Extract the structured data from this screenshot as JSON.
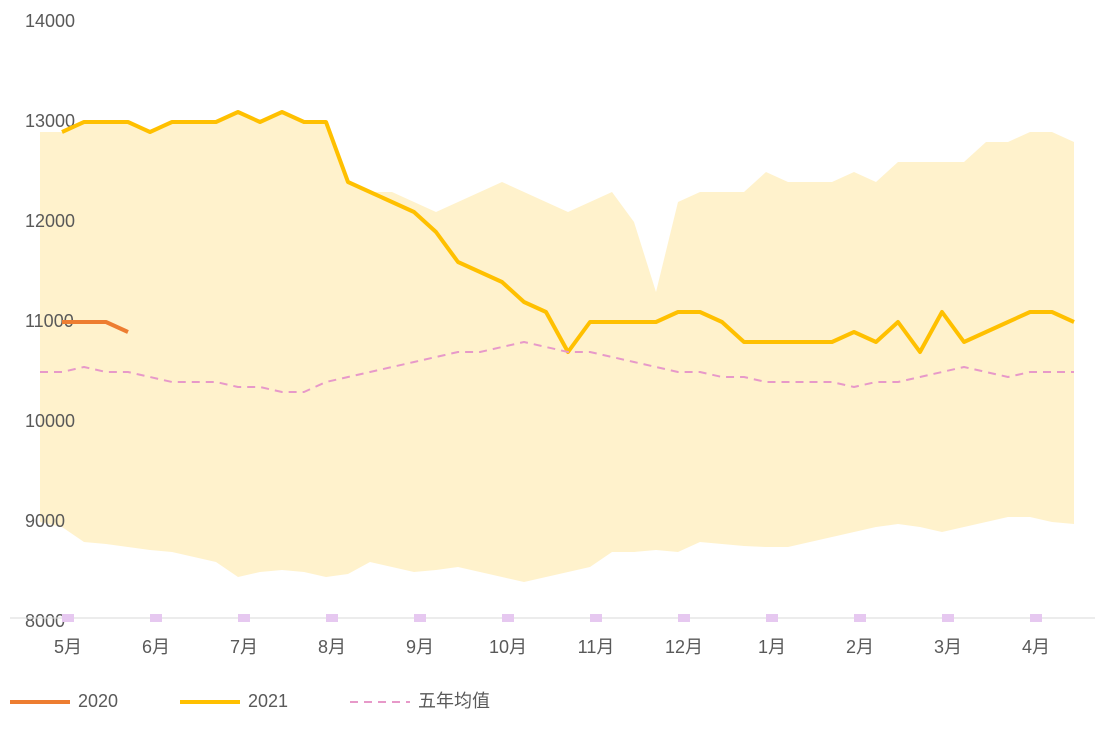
{
  "chart_data": {
    "type": "line",
    "categories": [
      "5月",
      null,
      null,
      null,
      "6月",
      null,
      null,
      null,
      "7月",
      null,
      null,
      null,
      "8月",
      null,
      null,
      null,
      "9月",
      null,
      null,
      null,
      "10月",
      null,
      null,
      null,
      "11月",
      null,
      null,
      null,
      "12月",
      null,
      null,
      null,
      "1月",
      null,
      null,
      null,
      "2月",
      null,
      null,
      null,
      "3月",
      null,
      null,
      null,
      "4月",
      null,
      null,
      null
    ],
    "ylim": [
      8000,
      14000
    ],
    "yticks": [
      8000,
      9000,
      10000,
      11000,
      12000,
      13000,
      14000
    ],
    "range": {
      "color": "#fff2cc",
      "high": [
        12900,
        12900,
        13000,
        13000,
        13000,
        12900,
        13000,
        13000,
        13000,
        13100,
        13000,
        13100,
        13000,
        13000,
        12400,
        12300,
        12300,
        12200,
        12100,
        12200,
        12300,
        12400,
        12300,
        12200,
        12100,
        12200,
        12300,
        12000,
        11300,
        12200,
        12300,
        12300,
        12300,
        12500,
        12400,
        12400,
        12400,
        12500,
        12400,
        12600,
        12600,
        12600,
        12600,
        12800,
        12800,
        12900,
        12900,
        12800
      ],
      "low": [
        9000,
        8950,
        8800,
        8780,
        8750,
        8720,
        8700,
        8650,
        8600,
        8450,
        8500,
        8520,
        8500,
        8450,
        8480,
        8600,
        8550,
        8500,
        8520,
        8550,
        8500,
        8450,
        8400,
        8450,
        8500,
        8550,
        8700,
        8700,
        8720,
        8700,
        8800,
        8780,
        8760,
        8750,
        8750,
        8800,
        8850,
        8900,
        8950,
        8980,
        8950,
        8900,
        8950,
        9000,
        9050,
        9050,
        9000,
        8980
      ]
    },
    "series": [
      {
        "name": "2020",
        "color": "#ed7d31",
        "values": [
          null,
          11000,
          11000,
          11000,
          10900,
          null,
          null,
          null,
          null,
          null,
          null,
          null,
          null,
          null,
          null,
          null,
          null,
          null,
          null,
          null,
          null,
          null,
          null,
          null,
          null,
          null,
          null,
          null,
          null,
          null,
          null,
          null,
          null,
          null,
          null,
          null,
          null,
          null,
          null,
          null,
          null,
          null,
          null,
          null,
          null,
          null,
          null,
          null
        ]
      },
      {
        "name": "2021",
        "color": "#ffc000",
        "values": [
          null,
          12900,
          13000,
          13000,
          13000,
          12900,
          13000,
          13000,
          13000,
          13100,
          13000,
          13100,
          13000,
          13000,
          12400,
          12300,
          12200,
          12100,
          11900,
          11600,
          11500,
          11400,
          11200,
          11100,
          10700,
          11000,
          11000,
          11000,
          11000,
          11100,
          11100,
          11000,
          10800,
          10800,
          10800,
          10800,
          10800,
          10900,
          10800,
          11000,
          10700,
          11100,
          10800,
          10900,
          11000,
          11100,
          11100,
          11000
        ]
      },
      {
        "name": "五年均值",
        "color": "#e799c9",
        "dash": true,
        "values": [
          10500,
          10500,
          10550,
          10500,
          10500,
          10450,
          10400,
          10400,
          10400,
          10350,
          10350,
          10300,
          10300,
          10400,
          10450,
          10500,
          10550,
          10600,
          10650,
          10700,
          10700,
          10750,
          10800,
          10750,
          10700,
          10700,
          10650,
          10600,
          10550,
          10500,
          10500,
          10450,
          10450,
          10400,
          10400,
          10400,
          10400,
          10350,
          10400,
          10400,
          10450,
          10500,
          10550,
          10500,
          10450,
          10500,
          10500,
          10500
        ]
      }
    ]
  }
}
